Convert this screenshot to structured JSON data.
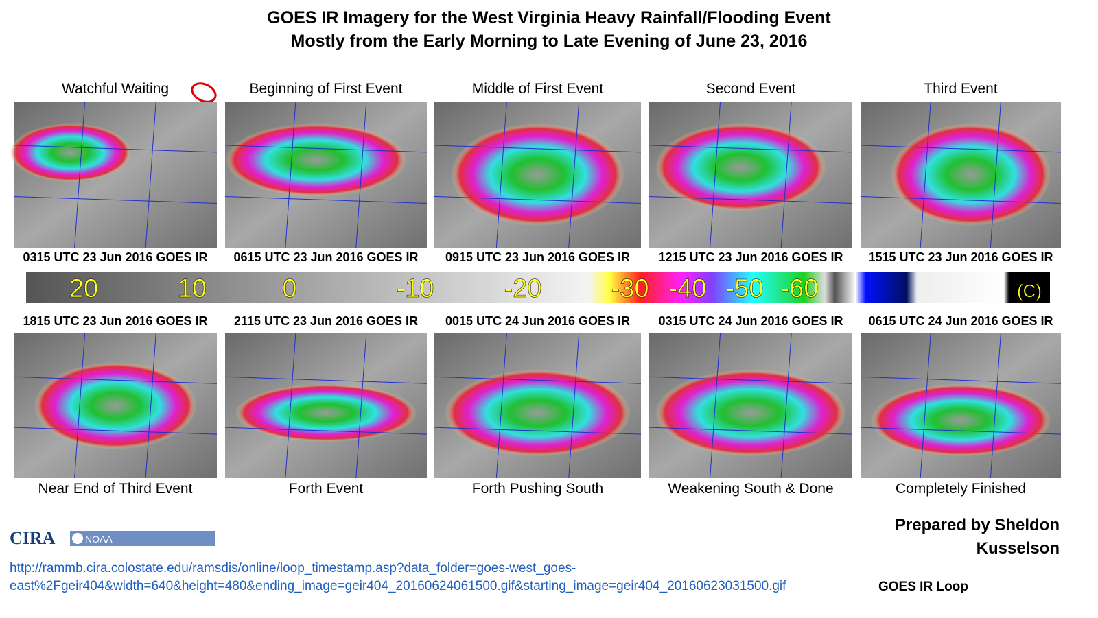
{
  "header": {
    "title": [
      "GOES IR Imagery for the West Virginia Heavy Rainfall/Flooding Event",
      "Mostly from the Early Morning to Late Evening of June 23, 2016"
    ]
  },
  "panels": [
    {
      "caption": "Watchful Waiting",
      "timestamp": "0315 UTC 23 Jun 2016 GOES IR"
    },
    {
      "caption": "Beginning of First Event",
      "timestamp": "0615 UTC 23 Jun 2016 GOES IR"
    },
    {
      "caption": "Middle of First Event",
      "timestamp": "0915 UTC 23 Jun 2016 GOES IR"
    },
    {
      "caption": "Second Event",
      "timestamp": "1215 UTC 23 Jun 2016 GOES IR"
    },
    {
      "caption": "Third Event",
      "timestamp": "1515 UTC 23 Jun 2016 GOES IR"
    },
    {
      "caption": "Near End of Third Event",
      "timestamp": "1815 UTC 23 Jun 2016 GOES IR"
    },
    {
      "caption": "Forth Event",
      "timestamp": "2115 UTC 23 Jun 2016 GOES IR"
    },
    {
      "caption": "Forth Pushing South",
      "timestamp": "0015 UTC 24 Jun 2016 GOES IR"
    },
    {
      "caption": "Weakening South & Done",
      "timestamp": "0315 UTC 24 Jun 2016 GOES IR"
    },
    {
      "caption": "Completely Finished",
      "timestamp": "0615 UTC 24 Jun 2016 GOES IR"
    }
  ],
  "colorbar": {
    "labels": [
      "20",
      "10",
      "0",
      "-10",
      "-20",
      "-30",
      "-40",
      "-50",
      "-60",
      "(C)"
    ]
  },
  "logos": [
    "CIRA",
    "NOAA"
  ],
  "credit": [
    "Prepared by Sheldon",
    "Kusselson"
  ],
  "link": {
    "lines": [
      "http://rammb.cira.colostate.edu/ramsdis/online/loop_timestamp.asp?data_folder=goes-west_goes-",
      "east%2Fgeir404&width=640&height=480&ending_image=geir404_20160624061500.gif&starting_image=geir404_20160623031500.gif"
    ],
    "label": "GOES IR Loop"
  }
}
